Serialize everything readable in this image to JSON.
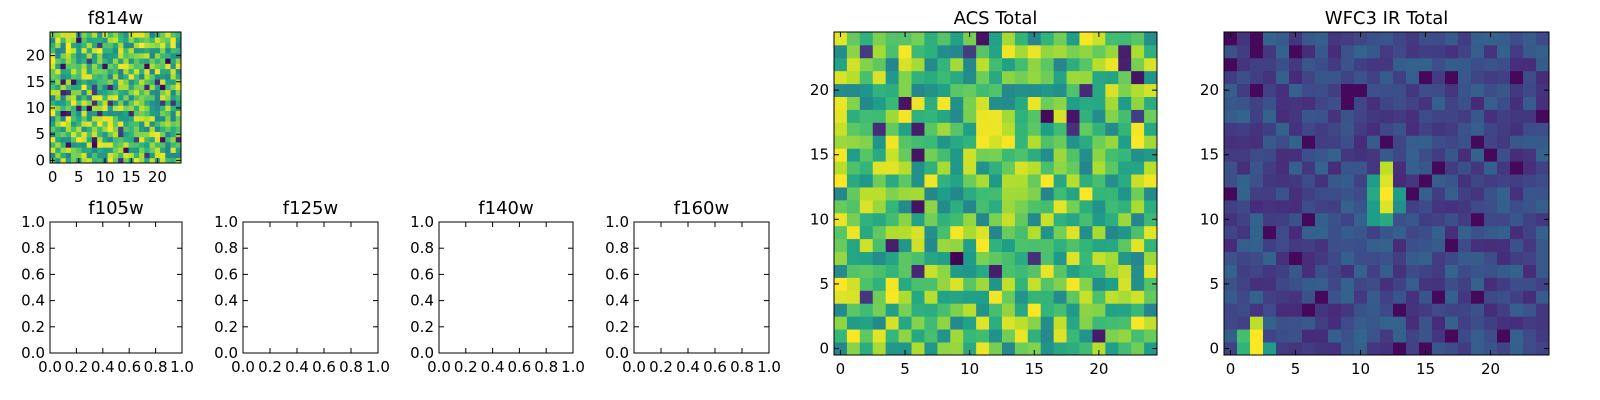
{
  "chart_data": [
    {
      "type": "heatmap",
      "title": "f814w",
      "xlim": [
        -0.5,
        24.5
      ],
      "ylim": [
        -0.5,
        24.5
      ],
      "xticks": [
        0,
        5,
        10,
        15,
        20
      ],
      "yticks": [
        0,
        5,
        10,
        15,
        20
      ],
      "xtick_labels": [
        "0",
        "5",
        "10",
        "15",
        "20"
      ],
      "ytick_labels": [
        "0",
        "5",
        "10",
        "15",
        "20"
      ],
      "colormap": "viridis",
      "grid_size": [
        25,
        25
      ],
      "values_note": "",
      "seed": 814
    },
    {
      "type": "heatmap",
      "title": "f105w",
      "xlim": [
        0,
        1
      ],
      "ylim": [
        0,
        1
      ],
      "xtick_labels": [
        "0.0",
        "0.2",
        "0.4",
        "0.6",
        "0.8",
        "1.0"
      ],
      "ytick_labels": [
        "0.0",
        "0.2",
        "0.4",
        "0.6",
        "0.8",
        "1.0"
      ],
      "empty": true
    },
    {
      "type": "heatmap",
      "title": "f125w",
      "xlim": [
        0,
        1
      ],
      "ylim": [
        0,
        1
      ],
      "xtick_labels": [
        "0.0",
        "0.2",
        "0.4",
        "0.6",
        "0.8",
        "1.0"
      ],
      "ytick_labels": [
        "0.0",
        "0.2",
        "0.4",
        "0.6",
        "0.8",
        "1.0"
      ],
      "empty": true
    },
    {
      "type": "heatmap",
      "title": "f140w",
      "xlim": [
        0,
        1
      ],
      "ylim": [
        0,
        1
      ],
      "xtick_labels": [
        "0.0",
        "0.2",
        "0.4",
        "0.6",
        "0.8",
        "1.0"
      ],
      "ytick_labels": [
        "0.0",
        "0.2",
        "0.4",
        "0.6",
        "0.8",
        "1.0"
      ],
      "empty": true
    },
    {
      "type": "heatmap",
      "title": "f160w",
      "xlim": [
        0,
        1
      ],
      "ylim": [
        0,
        1
      ],
      "xtick_labels": [
        "0.0",
        "0.2",
        "0.4",
        "0.6",
        "0.8",
        "1.0"
      ],
      "ytick_labels": [
        "0.0",
        "0.2",
        "0.4",
        "0.6",
        "0.8",
        "1.0"
      ],
      "empty": true
    },
    {
      "type": "heatmap",
      "title": "ACS Total",
      "xlim": [
        -0.5,
        24.5
      ],
      "ylim": [
        -0.5,
        24.5
      ],
      "xtick_labels": [
        "0",
        "5",
        "10",
        "15",
        "20"
      ],
      "ytick_labels": [
        "0",
        "5",
        "10",
        "15",
        "20"
      ],
      "colormap": "viridis",
      "grid_size": [
        25,
        25
      ],
      "seed": 2024
    },
    {
      "type": "heatmap",
      "title": "WFC3 IR Total",
      "xlim": [
        -0.5,
        24.5
      ],
      "ylim": [
        -0.5,
        24.5
      ],
      "xtick_labels": [
        "0",
        "5",
        "10",
        "15",
        "20"
      ],
      "ytick_labels": [
        "0",
        "5",
        "10",
        "15",
        "20"
      ],
      "colormap": "viridis",
      "grid_size": [
        25,
        25
      ],
      "seed": 316,
      "bright_sources": [
        {
          "x": 12,
          "y": 14,
          "value": 0.9
        },
        {
          "x": 12,
          "y": 13,
          "value": 0.95
        },
        {
          "x": 12,
          "y": 12,
          "value": 1.0
        },
        {
          "x": 12,
          "y": 11,
          "value": 0.95
        },
        {
          "x": 12,
          "y": 10,
          "value": 0.6
        },
        {
          "x": 11,
          "y": 13,
          "value": 0.55
        },
        {
          "x": 11,
          "y": 12,
          "value": 0.6
        },
        {
          "x": 11,
          "y": 11,
          "value": 0.55
        },
        {
          "x": 11,
          "y": 10,
          "value": 0.55
        },
        {
          "x": 13,
          "y": 12,
          "value": 0.55
        },
        {
          "x": 13,
          "y": 11,
          "value": 0.5
        },
        {
          "x": 2,
          "y": 2,
          "value": 0.9
        },
        {
          "x": 2,
          "y": 1,
          "value": 1.0
        },
        {
          "x": 2,
          "y": 0,
          "value": 1.0
        },
        {
          "x": 1,
          "y": 1,
          "value": 0.7
        },
        {
          "x": 1,
          "y": 0,
          "value": 0.65
        },
        {
          "x": 3,
          "y": 0,
          "value": 0.55
        }
      ]
    }
  ]
}
